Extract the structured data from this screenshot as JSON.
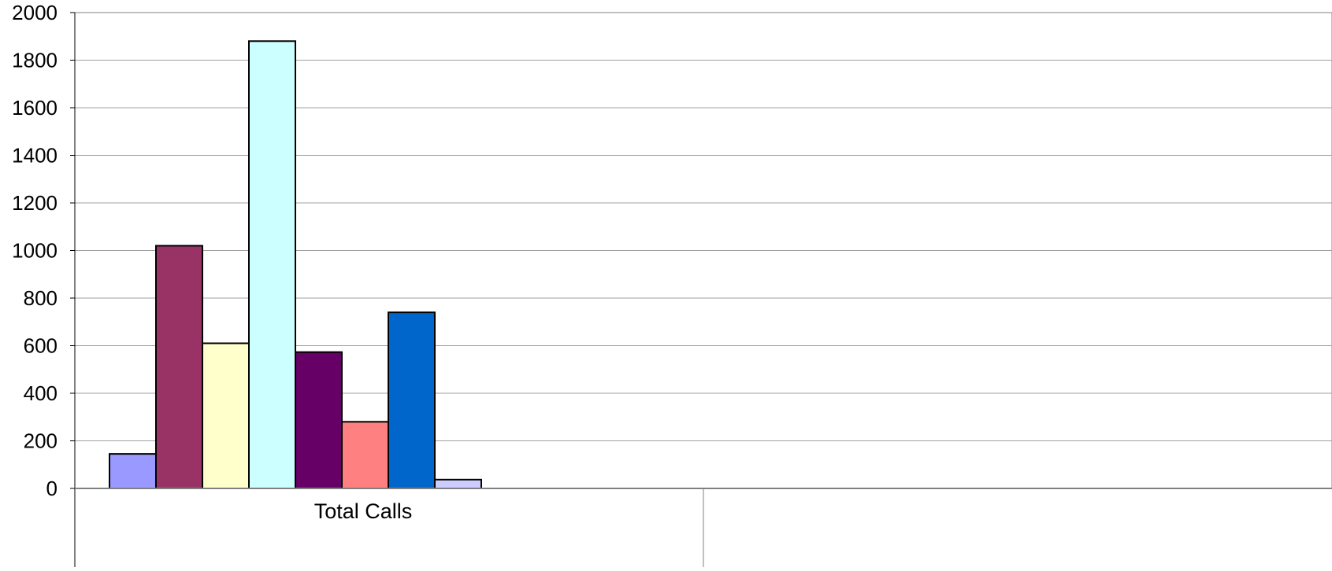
{
  "chart_data": {
    "type": "bar",
    "categories": [
      "Total Calls",
      ""
    ],
    "series": [
      {
        "values": [
          145,
          null
        ],
        "color": "#9999FF"
      },
      {
        "values": [
          1020,
          null
        ],
        "color": "#993366"
      },
      {
        "values": [
          610,
          null
        ],
        "color": "#FFFFCC"
      },
      {
        "values": [
          1880,
          null
        ],
        "color": "#CCFFFF"
      },
      {
        "values": [
          573,
          null
        ],
        "color": "#660066"
      },
      {
        "values": [
          280,
          null
        ],
        "color": "#FF8080"
      },
      {
        "values": [
          740,
          null
        ],
        "color": "#0066CC"
      },
      {
        "values": [
          37,
          null
        ],
        "color": "#CCCCFF"
      }
    ],
    "ylim": [
      0,
      2000
    ],
    "yticks": [
      "0",
      "200",
      "400",
      "600",
      "800",
      "1000",
      "1200",
      "1400",
      "1600",
      "1800",
      "2000"
    ],
    "grid": true,
    "gridline_color": "#A0A0A0",
    "legend": "none"
  }
}
